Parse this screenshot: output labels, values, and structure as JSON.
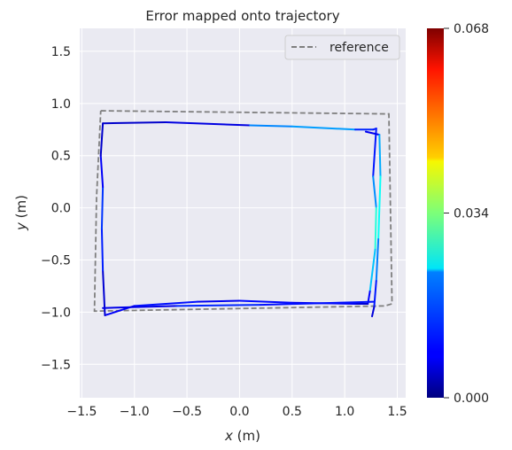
{
  "chart_data": {
    "type": "line",
    "title": "Error mapped onto trajectory",
    "xlabel_var": "x",
    "xlabel_unit": " (m)",
    "ylabel_var": "y",
    "ylabel_unit": " (m)",
    "xlim": [
      -1.52,
      1.58
    ],
    "ylim": [
      -1.82,
      1.72
    ],
    "xticks": [
      -1.5,
      -1.0,
      -0.5,
      0.0,
      0.5,
      1.0,
      1.5
    ],
    "xtick_labels": [
      "−1.5",
      "−1.0",
      "−0.5",
      "0.0",
      "0.5",
      "1.0",
      "1.5"
    ],
    "yticks": [
      -1.5,
      -1.0,
      -0.5,
      0.0,
      0.5,
      1.0,
      1.5
    ],
    "ytick_labels": [
      "−1.5",
      "−1.0",
      "−0.5",
      "0.0",
      "0.5",
      "1.0",
      "1.5"
    ],
    "grid": true,
    "legend_position": "top-right",
    "series": [
      {
        "name": "reference",
        "style": "dashed",
        "color": "#7f7f7f",
        "x": [
          -1.32,
          1.42,
          1.45,
          1.38,
          -1.38,
          -1.36,
          -1.32
        ],
        "y": [
          0.93,
          0.9,
          -0.92,
          -0.94,
          -0.99,
          0.1,
          0.93
        ]
      },
      {
        "name": "",
        "style": "colormap",
        "x": [
          -1.3,
          -0.7,
          0.1,
          0.5,
          1.1,
          1.27,
          1.3,
          1.27,
          1.3,
          1.29,
          1.24,
          1.22,
          1.1,
          0.5,
          0.0,
          -0.4,
          -1.0,
          -1.28,
          -1.3,
          -1.31,
          -1.3,
          -1.32,
          -1.3
        ],
        "y": [
          0.81,
          0.82,
          0.79,
          0.78,
          0.75,
          0.75,
          0.76,
          0.3,
          0.0,
          -0.4,
          -0.8,
          -0.92,
          -0.92,
          -0.91,
          -0.89,
          -0.9,
          -0.94,
          -1.03,
          -0.6,
          -0.2,
          0.2,
          0.5,
          0.81
        ],
        "error": [
          0.004,
          0.006,
          0.007,
          0.028,
          0.01,
          0.012,
          0.008,
          0.012,
          0.024,
          0.032,
          0.011,
          0.006,
          0.005,
          0.01,
          0.008,
          0.007,
          0.012,
          0.004,
          0.007,
          0.014,
          0.01,
          0.006,
          0.004
        ]
      },
      {
        "name": "",
        "style": "colormap",
        "x": [
          1.2,
          1.33,
          1.34,
          1.32,
          1.3,
          1.28,
          1.26
        ],
        "y": [
          0.73,
          0.7,
          0.3,
          -0.3,
          -0.7,
          -0.95,
          -1.04
        ],
        "error": [
          0.005,
          0.01,
          0.03,
          0.022,
          0.012,
          0.008,
          0.004
        ]
      },
      {
        "name": "",
        "style": "colormap",
        "x": [
          -1.3,
          -0.6,
          0.2,
          1.28
        ],
        "y": [
          -0.96,
          -0.94,
          -0.93,
          -0.9
        ],
        "error": [
          0.005,
          0.009,
          0.013,
          0.006
        ]
      }
    ],
    "colorbar": {
      "colormap": "jet",
      "min": 0.0,
      "max": 0.068,
      "ticks": [
        0.0,
        0.034,
        0.068
      ],
      "tick_labels": [
        "0.000",
        "0.034",
        "0.068"
      ]
    }
  }
}
